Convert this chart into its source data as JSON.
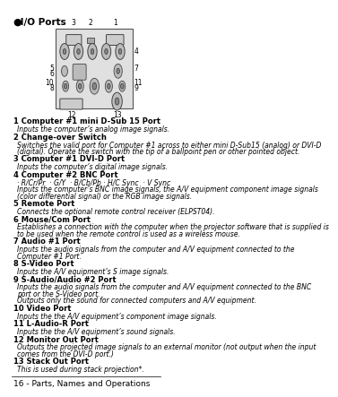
{
  "title_bullet": "●",
  "title": " I/O Ports",
  "footer": "16 - Parts, Names and Operations",
  "bg_color": "#ffffff",
  "items": [
    {
      "num": "1",
      "bold": "Computer #1 mini D-Sub 15 Port",
      "desc": "Inputs the computer’s analog image signals."
    },
    {
      "num": "2",
      "bold": "Change-over Switch",
      "desc": "Switches the valid port for Computer #1 across to either mini D-Sub15 (analog) or DVI-D\n(digital). Operate the switch with the tip of a ballpoint pen or other pointed object."
    },
    {
      "num": "3",
      "bold": "Computer #1 DVI-D Port",
      "desc": "Inputs the computer’s digital image signals."
    },
    {
      "num": "4",
      "bold": "Computer #2 BNC Port",
      "desc": "· R/Cr/Pr  · G/Y  · B/Cb/Pb · H/C Sync  · V Sync\nInputs the computer’s BNC image signals, the A/V equipment component image signals\n(color differential signal) or the RGB image signals."
    },
    {
      "num": "5",
      "bold": "Remote Port",
      "desc": "Connects the optional remote control receiver (ELPST04)."
    },
    {
      "num": "6",
      "bold": "Mouse/Com Port",
      "desc": "Establishes a connection with the computer when the projector software that is supplied is\nto be used when the remote control is used as a wireless mouse."
    },
    {
      "num": "7",
      "bold": "Audio #1 Port",
      "desc": "Inputs the audio signals from the computer and A/V equipment connected to the\nComputer #1 Port."
    },
    {
      "num": "8",
      "bold": "S-Video Port",
      "desc": "Inputs the A/V equipment’s S image signals."
    },
    {
      "num": "9",
      "bold": "S-Audio/Audio #2 Port",
      "desc": "Inputs the audio signals from the computer and A/V equipment connected to the BNC\nport or the S-Video port.\nOutputs only the sound for connected computers and A/V equipment."
    },
    {
      "num": "10",
      "bold": "Video Port",
      "desc": "Inputs the the A/V equipment’s component image signals."
    },
    {
      "num": "11",
      "bold": "L-Audio-R Port",
      "desc": "Inputs the the A/V equipment’s sound signals."
    },
    {
      "num": "12",
      "bold": "Monitor Out Port",
      "desc": "Outputs the projected image signals to an external monitor (not output when the input\ncomes from the DVI-D port.)"
    },
    {
      "num": "13",
      "bold": "Stack Out Port",
      "desc": "This is used during stack projection*."
    }
  ]
}
